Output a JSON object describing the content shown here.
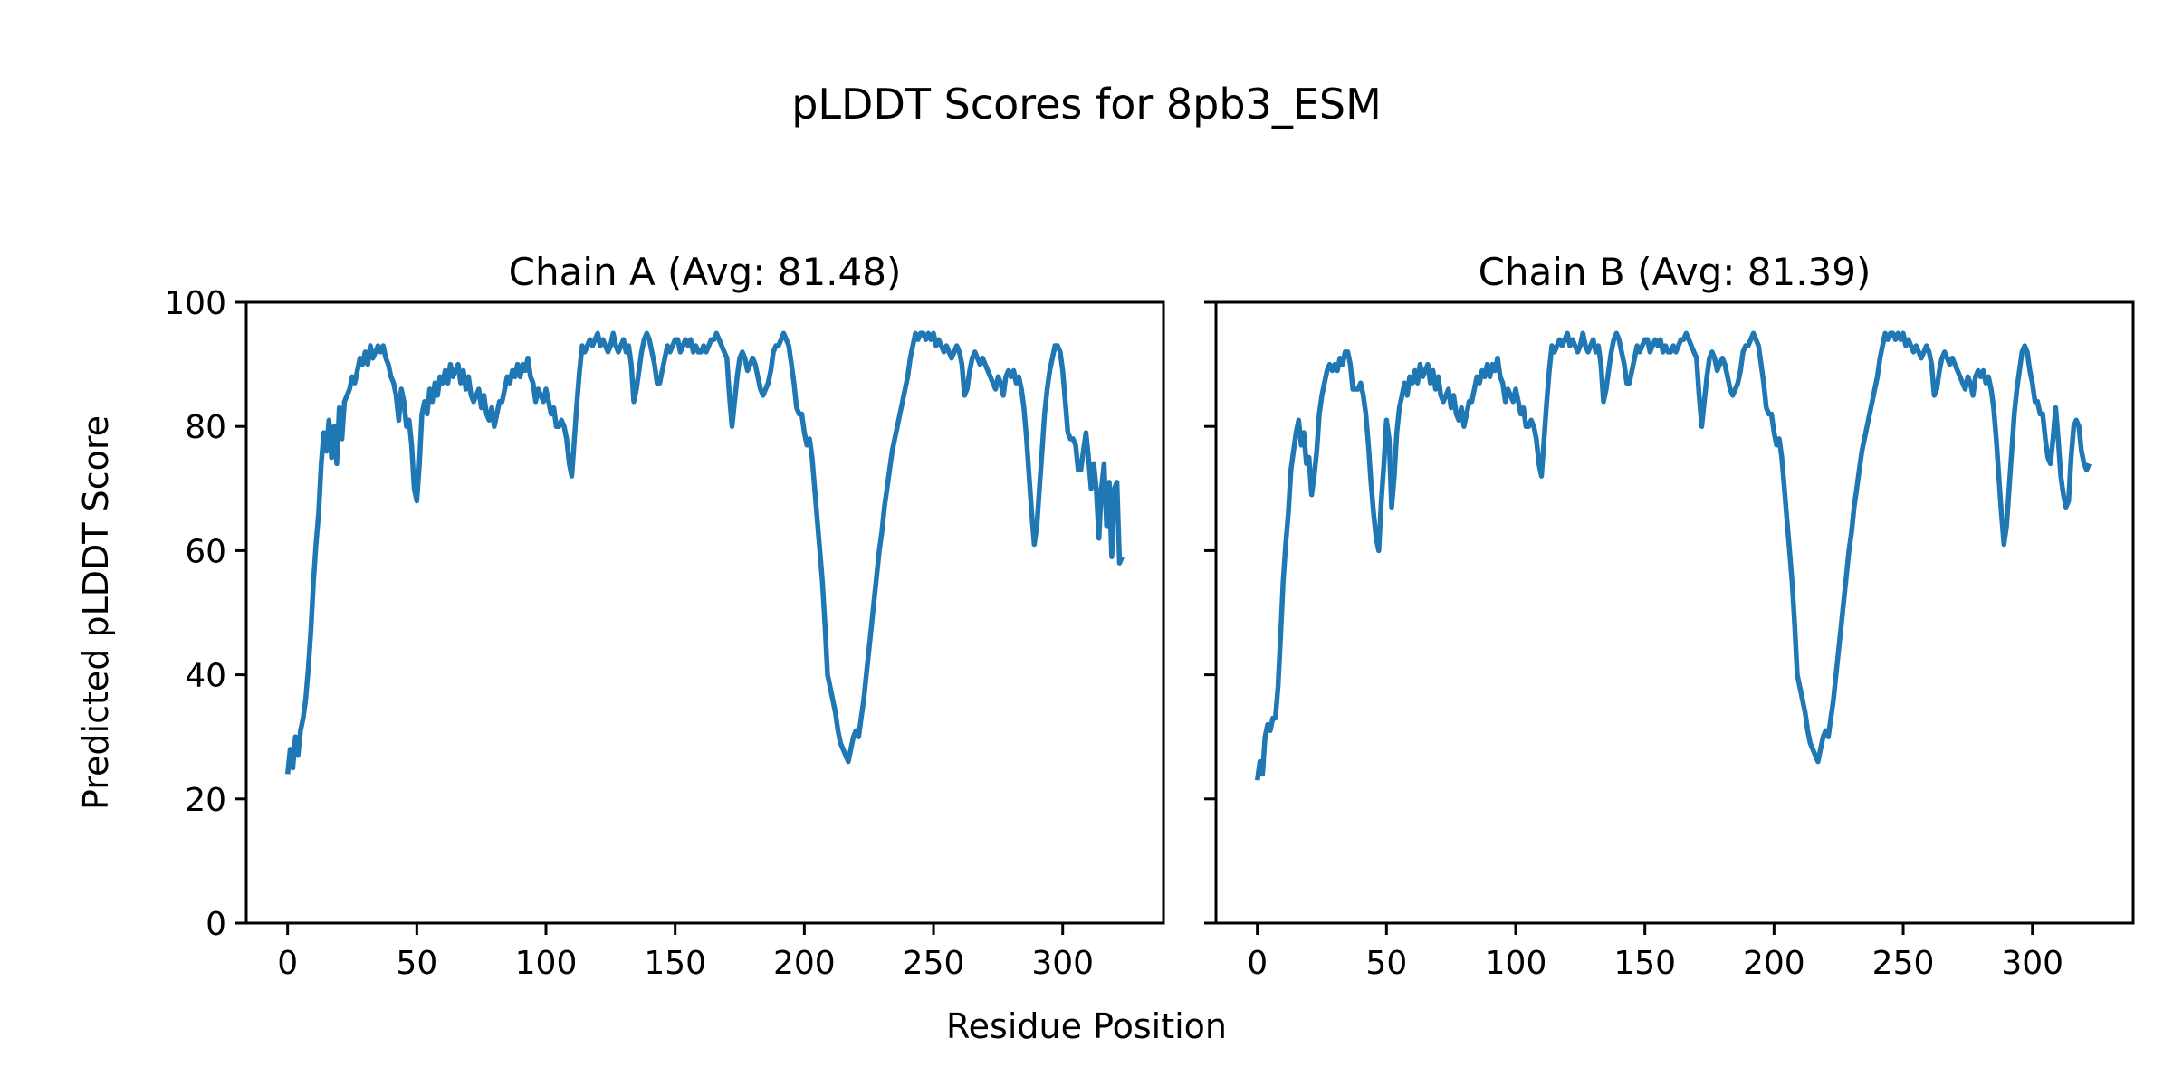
{
  "figure": {
    "title": "pLDDT Scores for 8pb3_ESM",
    "xlabel": "Residue Position",
    "ylabel": "Predicted pLDDT Score",
    "background_color": "#ffffff",
    "text_color": "#000000",
    "line_color": "#1f77b4"
  },
  "chart_data": [
    {
      "type": "line",
      "title": "Chain A (Avg: 81.48)",
      "series_name": "Chain A pLDDT",
      "avg": 81.48,
      "x_start": 0,
      "x_step": 1,
      "xlim": [
        -16,
        339
      ],
      "ylim": [
        0,
        100
      ],
      "xticks": [
        0,
        50,
        100,
        150,
        200,
        250,
        300
      ],
      "yticks": [
        0,
        20,
        40,
        60,
        80,
        100
      ],
      "show_ytick_labels": true,
      "grid": false,
      "values": [
        24,
        28,
        25,
        30,
        27,
        31,
        33,
        36,
        41,
        47,
        55,
        61,
        66,
        74,
        79,
        76,
        81,
        75,
        80,
        74,
        83,
        78,
        84,
        85,
        86,
        88,
        87,
        89,
        91,
        90,
        92,
        90,
        93,
        91,
        92,
        93,
        92,
        93,
        91,
        90,
        88,
        87,
        85,
        81,
        86,
        84,
        80,
        81,
        77,
        70,
        68,
        74,
        82,
        84,
        82,
        86,
        84,
        87,
        85,
        88,
        87,
        89,
        87,
        90,
        88,
        89,
        90,
        87,
        89,
        86,
        88,
        85,
        84,
        85,
        86,
        83,
        85,
        82,
        81,
        83,
        80,
        82,
        84,
        84,
        86,
        88,
        87,
        89,
        88,
        90,
        88,
        90,
        89,
        91,
        88,
        87,
        84,
        86,
        85,
        84,
        86,
        84,
        82,
        83,
        80,
        80,
        81,
        80,
        78,
        74,
        72,
        78,
        84,
        89,
        93,
        92,
        93,
        94,
        93,
        94,
        95,
        93,
        94,
        93,
        92,
        93,
        95,
        93,
        92,
        93,
        94,
        92,
        93,
        90,
        84,
        86,
        89,
        92,
        94,
        95,
        94,
        92,
        90,
        87,
        87,
        89,
        91,
        93,
        92,
        93,
        94,
        94,
        92,
        93,
        94,
        93,
        94,
        92,
        93,
        92,
        92,
        93,
        92,
        93,
        94,
        94,
        95,
        94,
        93,
        92,
        91,
        85,
        80,
        84,
        88,
        91,
        92,
        91,
        89,
        90,
        91,
        90,
        88,
        86,
        85,
        86,
        87,
        89,
        92,
        93,
        93,
        94,
        95,
        94,
        93,
        90,
        87,
        83,
        82,
        82,
        79,
        77,
        78,
        75,
        70,
        65,
        60,
        55,
        48,
        40,
        38,
        36,
        34,
        31,
        29,
        28,
        27,
        26,
        28,
        30,
        31,
        30,
        33,
        36,
        40,
        44,
        48,
        52,
        56,
        60,
        63,
        67,
        70,
        73,
        76,
        78,
        80,
        82,
        84,
        86,
        88,
        91,
        93,
        95,
        94,
        95,
        95,
        94,
        95,
        94,
        95,
        93,
        94,
        93,
        92,
        93,
        92,
        91,
        92,
        93,
        92,
        90,
        85,
        86,
        89,
        91,
        92,
        91,
        90,
        91,
        90,
        89,
        88,
        87,
        86,
        88,
        87,
        85,
        88,
        89,
        88,
        89,
        87,
        88,
        86,
        83,
        78,
        72,
        66,
        61,
        64,
        70,
        76,
        82,
        86,
        89,
        91,
        93,
        93,
        92,
        89,
        84,
        79,
        78,
        78,
        77,
        73,
        73,
        76,
        79,
        75,
        70,
        74,
        70,
        62,
        70,
        74,
        64,
        71,
        59,
        70,
        71,
        58,
        59
      ]
    },
    {
      "type": "line",
      "title": "Chain B (Avg: 81.39)",
      "series_name": "Chain B pLDDT",
      "avg": 81.39,
      "x_start": 0,
      "x_step": 1,
      "xlim": [
        -16,
        339
      ],
      "ylim": [
        0,
        100
      ],
      "xticks": [
        0,
        50,
        100,
        150,
        200,
        250,
        300
      ],
      "yticks": [
        0,
        20,
        40,
        60,
        80,
        100
      ],
      "show_ytick_labels": false,
      "grid": false,
      "values": [
        23,
        26,
        24,
        30,
        32,
        31,
        33,
        33,
        38,
        46,
        55,
        61,
        66,
        73,
        76,
        79,
        81,
        77,
        79,
        74,
        75,
        69,
        72,
        76,
        82,
        85,
        87,
        89,
        90,
        89,
        90,
        89,
        91,
        90,
        92,
        92,
        90,
        86,
        86,
        86,
        87,
        85,
        82,
        77,
        71,
        66,
        62,
        60,
        68,
        74,
        81,
        78,
        67,
        72,
        79,
        83,
        85,
        87,
        85,
        88,
        87,
        89,
        87,
        90,
        88,
        89,
        90,
        87,
        89,
        86,
        88,
        85,
        84,
        85,
        86,
        83,
        85,
        82,
        81,
        83,
        80,
        82,
        84,
        84,
        86,
        88,
        87,
        89,
        88,
        90,
        88,
        90,
        89,
        91,
        88,
        87,
        84,
        86,
        85,
        84,
        86,
        84,
        82,
        83,
        80,
        80,
        81,
        80,
        78,
        74,
        72,
        78,
        84,
        89,
        93,
        92,
        93,
        94,
        93,
        94,
        95,
        93,
        94,
        93,
        92,
        93,
        95,
        93,
        92,
        93,
        94,
        92,
        93,
        90,
        84,
        86,
        89,
        92,
        94,
        95,
        94,
        92,
        90,
        87,
        87,
        89,
        91,
        93,
        92,
        93,
        94,
        94,
        92,
        93,
        94,
        93,
        94,
        92,
        93,
        92,
        92,
        93,
        92,
        93,
        94,
        94,
        95,
        94,
        93,
        92,
        91,
        85,
        80,
        84,
        88,
        91,
        92,
        91,
        89,
        90,
        91,
        90,
        88,
        86,
        85,
        86,
        87,
        89,
        92,
        93,
        93,
        94,
        95,
        94,
        93,
        90,
        87,
        83,
        82,
        82,
        79,
        77,
        78,
        75,
        70,
        65,
        60,
        55,
        48,
        40,
        38,
        36,
        34,
        31,
        29,
        28,
        27,
        26,
        28,
        30,
        31,
        30,
        33,
        36,
        40,
        44,
        48,
        52,
        56,
        60,
        63,
        67,
        70,
        73,
        76,
        78,
        80,
        82,
        84,
        86,
        88,
        91,
        93,
        95,
        94,
        95,
        95,
        94,
        95,
        94,
        95,
        93,
        94,
        93,
        92,
        93,
        92,
        91,
        92,
        93,
        92,
        90,
        85,
        86,
        89,
        91,
        92,
        91,
        90,
        91,
        90,
        89,
        88,
        87,
        86,
        88,
        87,
        85,
        88,
        89,
        88,
        89,
        87,
        88,
        86,
        83,
        78,
        72,
        66,
        61,
        64,
        70,
        76,
        82,
        86,
        89,
        92,
        93,
        92,
        89,
        87,
        84,
        84,
        82,
        82,
        78,
        75,
        74,
        78,
        83,
        78,
        72,
        69,
        67,
        68,
        75,
        80,
        81,
        80,
        76,
        74,
        73,
        74
      ]
    }
  ]
}
